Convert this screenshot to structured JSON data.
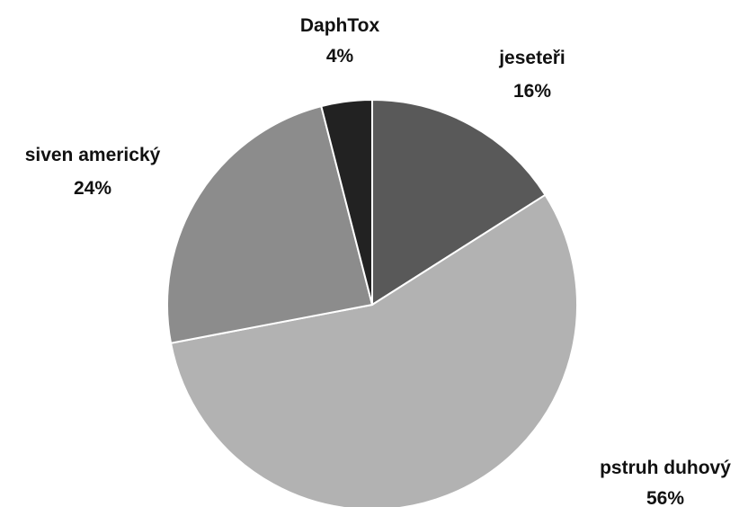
{
  "chart_data": {
    "type": "pie",
    "slices": [
      {
        "label": "jeseteři",
        "value": 16,
        "value_label": "16%",
        "color": "#595959"
      },
      {
        "label": "pstruh duhový",
        "value": 56,
        "value_label": "56%",
        "color": "#b2b2b2"
      },
      {
        "label": "siven americký",
        "value": 24,
        "value_label": "24%",
        "color": "#8c8c8c"
      },
      {
        "label": "DaphTox",
        "value": 4,
        "value_label": "4%",
        "color": "#222222"
      }
    ],
    "start_angle_deg": 0,
    "direction": "clockwise",
    "data_labels": "outside"
  }
}
